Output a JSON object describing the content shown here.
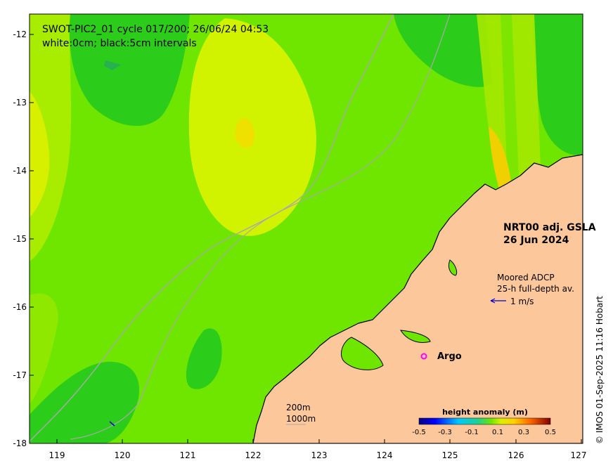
{
  "title": {
    "line1": "SWOT-PIC2_01 cycle 017/200; 26/06/24 04:53",
    "line2": "white:0cm; black:5cm intervals"
  },
  "product": {
    "line1": "NRT00 adj. GSLA",
    "line2": "26 Jun 2024"
  },
  "adcp": {
    "line1": "Moored ADCP",
    "line2": "25-h full-depth av.",
    "scale_label": "1 m/s"
  },
  "argo": {
    "label": "Argo",
    "marker_color": "#ff00ff"
  },
  "bathymetry": {
    "contour_1": "200m",
    "contour_2": "1000m"
  },
  "colorbar": {
    "title": "height anomaly (m)",
    "ticks": [
      "-0.5",
      "-0.3",
      "-0.1",
      "0.1",
      "0.3",
      "0.5"
    ],
    "min": -0.5,
    "max": 0.5
  },
  "axes": {
    "x_ticks": [
      "119",
      "120",
      "121",
      "122",
      "123",
      "124",
      "125",
      "126",
      "127"
    ],
    "y_ticks": [
      "-12",
      "-13",
      "-14",
      "-15",
      "-16",
      "-17",
      "-18"
    ]
  },
  "credit": "© IMOS 01-Sep-2025 11:16 Hobart",
  "colors": {
    "ocean_base": "#6ee600",
    "land": "#fcc89b",
    "coastline": "#000000",
    "bathy_contour": "#a9a9a9",
    "adcp_arrow": "#0000cc"
  }
}
